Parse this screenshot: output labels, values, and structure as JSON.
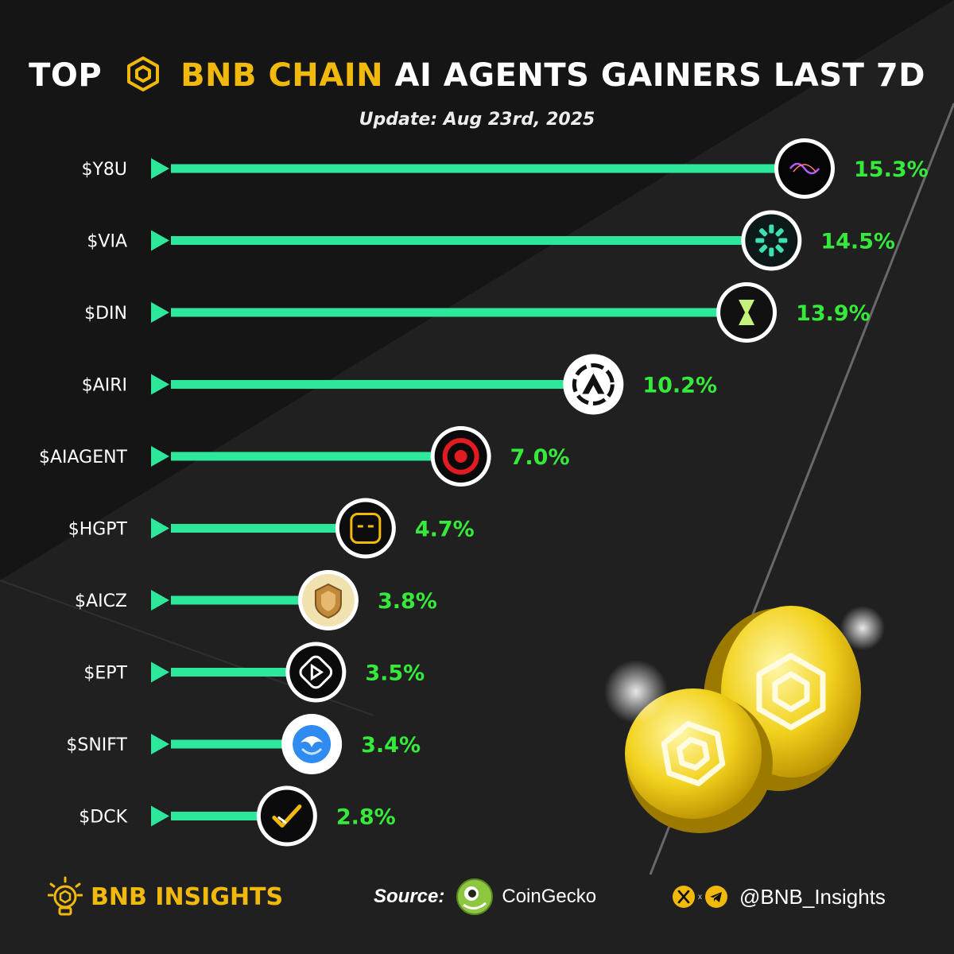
{
  "header": {
    "title_prefix": "TOP",
    "title_brand": "BNB CHAIN",
    "title_suffix": "AI AGENTS GAINERS LAST 7D",
    "update_text": "Update: Aug 23rd, 2025"
  },
  "chart_data": {
    "type": "bar",
    "orientation": "horizontal",
    "categories": [
      "$Y8U",
      "$VIA",
      "$DIN",
      "$AIRI",
      "$AIAGENT",
      "$HGPT",
      "$AICZ",
      "$EPT",
      "$SNIFT",
      "$DCK"
    ],
    "values": [
      15.3,
      14.5,
      13.9,
      10.2,
      7.0,
      4.7,
      3.8,
      3.5,
      3.4,
      2.8
    ],
    "value_labels": [
      "15.3%",
      "14.5%",
      "13.9%",
      "10.2%",
      "7.0%",
      "4.7%",
      "3.8%",
      "3.5%",
      "3.4%",
      "2.8%"
    ],
    "icons": [
      "y8u-icon",
      "via-icon",
      "din-icon",
      "airi-icon",
      "aiagent-icon",
      "hgpt-icon",
      "aicz-icon",
      "ept-icon",
      "snift-icon",
      "dck-icon"
    ],
    "bar_color": "#2de89a",
    "label_color": "#35ea3a"
  },
  "footer": {
    "brand": "BNB INSIGHTS",
    "source_label": "Source:",
    "source_name": "CoinGecko",
    "handle": "@BNB_Insights",
    "cross": "x"
  },
  "colors": {
    "background": "#161616",
    "gold": "#f0b90b"
  }
}
